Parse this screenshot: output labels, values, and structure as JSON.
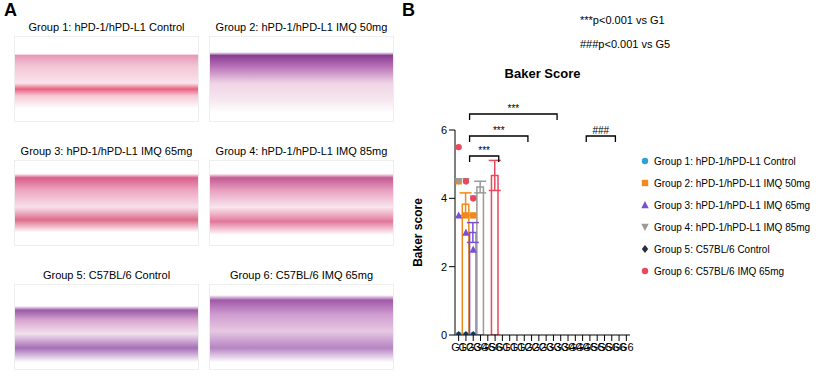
{
  "figure": {
    "panels": [
      "A",
      "B"
    ],
    "images": [
      {
        "caption": "Group 1: hPD-1/hPD-L1 Control"
      },
      {
        "caption": "Group 2: hPD-1/hPD-L1 IMQ 50mg"
      },
      {
        "caption": "Group 3: hPD-1/hPD-L1 IMQ 65mg"
      },
      {
        "caption": "Group 4: hPD-1/hPD-L1 IMQ 85mg"
      },
      {
        "caption": "Group 5: C57BL/6 Control"
      },
      {
        "caption": "Group 6: C57BL/6 IMQ 65mg"
      }
    ]
  },
  "chart_data": {
    "type": "bar",
    "title": "Baker Score",
    "y_label": "Baker score",
    "categories": [
      "G1",
      "G2",
      "G3",
      "G4",
      "G5",
      "G6"
    ],
    "ylim": [
      0,
      6
    ],
    "yticks": [
      0,
      2,
      4,
      6
    ],
    "legend": "right",
    "annotations": [
      "***p<0.001 vs G1",
      "###p<0.001 vs G5"
    ],
    "comparisons": [
      {
        "from": "G1",
        "to": "G2",
        "label": "***"
      },
      {
        "from": "G1",
        "to": "G3",
        "label": "***"
      },
      {
        "from": "G1",
        "to": "G4",
        "label": "***"
      },
      {
        "from": "G5",
        "to": "G6",
        "label": "###"
      }
    ],
    "series": [
      {
        "name": "Group 1: hPD-1/hPD-L1 Control",
        "color": "#2f9fd8",
        "marker": "circle",
        "values": [
          0,
          null,
          null,
          null,
          null,
          null
        ],
        "errors": [
          0,
          null,
          null,
          null,
          null,
          null
        ],
        "points": [
          [
            0,
            0,
            0
          ],
          null,
          null,
          null,
          null,
          null
        ]
      },
      {
        "name": "Group 2: hPD-1/hPD-L1 IMQ 50mg",
        "color": "#f08a1c",
        "marker": "square",
        "values": [
          null,
          3.83,
          null,
          null,
          null,
          null
        ],
        "errors": [
          null,
          0.33,
          null,
          null,
          null,
          null
        ],
        "points": [
          null,
          [
            4.5,
            3.5,
            3.5
          ],
          null,
          null,
          null,
          null
        ]
      },
      {
        "name": "Group 3: hPD-1/hPD-L1 IMQ 65mg",
        "color": "#7a4fd6",
        "marker": "triangle",
        "values": [
          null,
          null,
          3.0,
          null,
          null,
          null
        ],
        "errors": [
          null,
          null,
          0.29,
          null,
          null,
          null
        ],
        "points": [
          null,
          null,
          [
            3.5,
            3.0,
            2.5
          ],
          null,
          null,
          null
        ]
      },
      {
        "name": "Group 4: hPD-1/hPD-L1 IMQ 85mg",
        "color": "#9a9a9a",
        "marker": "triangle-down",
        "values": [
          null,
          null,
          null,
          4.33,
          null,
          null
        ],
        "errors": [
          null,
          null,
          null,
          0.17,
          null,
          null
        ],
        "points": [
          null,
          null,
          null,
          [
            4.5,
            4.5,
            4.0
          ],
          null,
          null
        ]
      },
      {
        "name": "Group 5: C57BL/6 Control",
        "color": "#2b2b3a",
        "marker": "diamond",
        "values": [
          null,
          null,
          null,
          null,
          0,
          null
        ],
        "errors": [
          null,
          null,
          null,
          null,
          0,
          null
        ],
        "points": [
          null,
          null,
          null,
          null,
          [
            0,
            0,
            0
          ],
          null
        ]
      },
      {
        "name": "Group 6: C57BL/6 IMQ 65mg",
        "color": "#e8495e",
        "marker": "circle",
        "values": [
          null,
          null,
          null,
          null,
          null,
          4.67
        ],
        "errors": [
          null,
          null,
          null,
          null,
          null,
          0.44
        ],
        "points": [
          null,
          null,
          null,
          null,
          null,
          [
            5.5,
            4.5,
            4.0
          ]
        ]
      }
    ]
  }
}
